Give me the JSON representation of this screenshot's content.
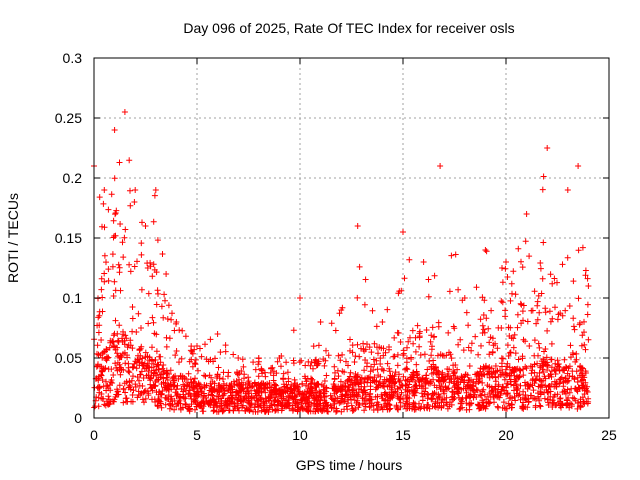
{
  "chart_data": {
    "type": "scatter",
    "title": "Day 096 of 2025, Rate Of TEC Index for receiver osls",
    "xlabel": "GPS time / hours",
    "ylabel": "ROTI / TECUs",
    "xlim": [
      0,
      25
    ],
    "ylim": [
      0,
      0.3
    ],
    "x_ticks": [
      "0",
      "5",
      "10",
      "15",
      "20",
      "25"
    ],
    "y_ticks": [
      "0",
      "0.05",
      "0.1",
      "0.15",
      "0.2",
      "0.25",
      "0.3"
    ],
    "grid": true,
    "marker": "+",
    "color": "#ff0000",
    "x_range_of_data": [
      0,
      24
    ],
    "profile": [
      {
        "x": 0.0,
        "base": 0.03,
        "spread": 0.06,
        "peak": 0.21
      },
      {
        "x": 0.5,
        "base": 0.04,
        "spread": 0.09,
        "peak": 0.19
      },
      {
        "x": 1.0,
        "base": 0.05,
        "spread": 0.11,
        "peak": 0.24
      },
      {
        "x": 1.5,
        "base": 0.05,
        "spread": 0.12,
        "peak": 0.255
      },
      {
        "x": 2.0,
        "base": 0.04,
        "spread": 0.09,
        "peak": 0.19
      },
      {
        "x": 2.5,
        "base": 0.04,
        "spread": 0.1,
        "peak": 0.16
      },
      {
        "x": 3.0,
        "base": 0.035,
        "spread": 0.09,
        "peak": 0.19
      },
      {
        "x": 3.5,
        "base": 0.03,
        "spread": 0.06,
        "peak": 0.12
      },
      {
        "x": 4.0,
        "base": 0.025,
        "spread": 0.04,
        "peak": 0.08
      },
      {
        "x": 5.0,
        "base": 0.02,
        "spread": 0.03,
        "peak": 0.06
      },
      {
        "x": 6.0,
        "base": 0.02,
        "spread": 0.03,
        "peak": 0.07
      },
      {
        "x": 7.0,
        "base": 0.02,
        "spread": 0.02,
        "peak": 0.05
      },
      {
        "x": 8.0,
        "base": 0.02,
        "spread": 0.02,
        "peak": 0.05
      },
      {
        "x": 9.0,
        "base": 0.02,
        "spread": 0.025,
        "peak": 0.05
      },
      {
        "x": 10.0,
        "base": 0.02,
        "spread": 0.03,
        "peak": 0.1
      },
      {
        "x": 11.0,
        "base": 0.02,
        "spread": 0.03,
        "peak": 0.08
      },
      {
        "x": 12.0,
        "base": 0.02,
        "spread": 0.035,
        "peak": 0.09
      },
      {
        "x": 12.8,
        "base": 0.025,
        "spread": 0.04,
        "peak": 0.16
      },
      {
        "x": 14.0,
        "base": 0.025,
        "spread": 0.04,
        "peak": 0.08
      },
      {
        "x": 15.0,
        "base": 0.025,
        "spread": 0.05,
        "peak": 0.155
      },
      {
        "x": 16.0,
        "base": 0.03,
        "spread": 0.05,
        "peak": 0.13
      },
      {
        "x": 16.8,
        "base": 0.03,
        "spread": 0.05,
        "peak": 0.21
      },
      {
        "x": 18.0,
        "base": 0.025,
        "spread": 0.05,
        "peak": 0.1
      },
      {
        "x": 19.0,
        "base": 0.03,
        "spread": 0.07,
        "peak": 0.14
      },
      {
        "x": 20.0,
        "base": 0.03,
        "spread": 0.07,
        "peak": 0.13
      },
      {
        "x": 21.0,
        "base": 0.03,
        "spread": 0.08,
        "peak": 0.17
      },
      {
        "x": 22.0,
        "base": 0.035,
        "spread": 0.09,
        "peak": 0.225
      },
      {
        "x": 23.0,
        "base": 0.03,
        "spread": 0.08,
        "peak": 0.19
      },
      {
        "x": 23.5,
        "base": 0.03,
        "spread": 0.09,
        "peak": 0.21
      },
      {
        "x": 24.0,
        "base": 0.03,
        "spread": 0.06,
        "peak": 0.11
      }
    ]
  }
}
